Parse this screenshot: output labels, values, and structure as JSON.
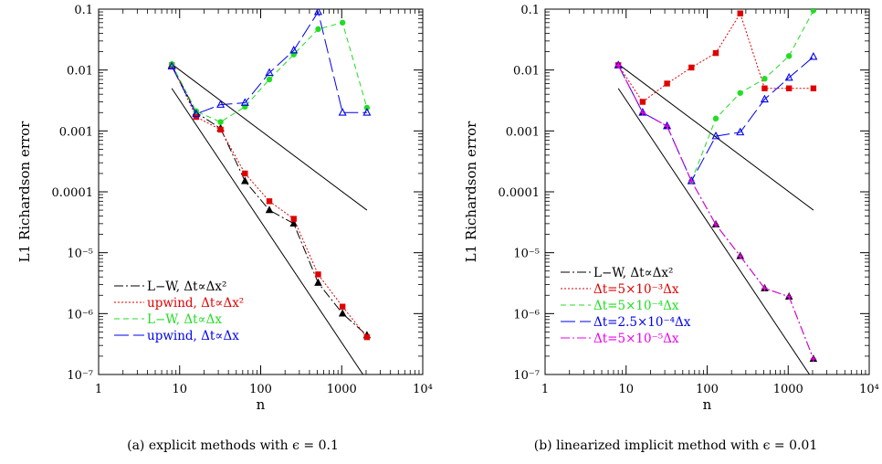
{
  "captions": [
    "(a) explicit methods with ϵ = 0.1",
    "(b) linearized implicit method with ϵ = 0.01"
  ],
  "chart_data": [
    {
      "type": "line",
      "xscale": "log",
      "yscale": "log",
      "xlabel": "n",
      "ylabel": "L1 Richardson error",
      "xlim": [
        1,
        10000
      ],
      "ylim": [
        1e-07,
        0.1
      ],
      "xticks": [
        {
          "v": 1,
          "label": "1"
        },
        {
          "v": 10,
          "label": "10"
        },
        {
          "v": 100,
          "label": "100"
        },
        {
          "v": 1000,
          "label": "1000"
        },
        {
          "v": 10000,
          "label": "10⁴"
        }
      ],
      "yticks": [
        {
          "v": 0.1,
          "label": "0.1"
        },
        {
          "v": 0.01,
          "label": "0.01"
        },
        {
          "v": 0.001,
          "label": "0.001"
        },
        {
          "v": 0.0001,
          "label": "0.0001"
        },
        {
          "v": 1e-05,
          "label": "10⁻⁵"
        },
        {
          "v": 1e-06,
          "label": "10⁻⁶"
        },
        {
          "v": 1e-07,
          "label": "10⁻⁷"
        }
      ],
      "legend_position": "bottom-left",
      "reference_lines": [
        {
          "x": [
            8,
            2048
          ],
          "y": [
            0.0125,
            5e-05
          ]
        },
        {
          "x": [
            8,
            2048
          ],
          "y": [
            0.005,
            8e-08
          ]
        }
      ],
      "series": [
        {
          "name": "L−W,  Δt∝Δx²",
          "color": "#000000",
          "dash": "10 3 2 3",
          "marker": "triangle-filled",
          "x": [
            8,
            16,
            32,
            64,
            128,
            256,
            512,
            1024,
            2048
          ],
          "y": [
            0.012,
            0.002,
            0.0011,
            0.00015,
            5e-05,
            3e-05,
            3.2e-06,
            1e-06,
            4.4e-07
          ]
        },
        {
          "name": "upwind,  Δt∝Δx²",
          "color": "#e00000",
          "dash": "2 2",
          "marker": "square-filled",
          "x": [
            8,
            16,
            32,
            64,
            128,
            256,
            512,
            1024,
            2048
          ],
          "y": [
            0.012,
            0.0017,
            0.00105,
            0.0002,
            7e-05,
            3.6e-05,
            4.4e-06,
            1.3e-06,
            4.1e-07
          ]
        },
        {
          "name": "L−W,  Δt∝Δx",
          "color": "#22dd22",
          "dash": "6 4",
          "marker": "circle-filled",
          "x": [
            8,
            16,
            32,
            64,
            128,
            256,
            512,
            1024,
            2048
          ],
          "y": [
            0.0125,
            0.0021,
            0.0014,
            0.0025,
            0.007,
            0.018,
            0.047,
            0.06,
            0.0024
          ]
        },
        {
          "name": "upwind,  Δt∝Δx",
          "color": "#0000ee",
          "dash": "16 5",
          "marker": "triangle-open",
          "x": [
            8,
            16,
            32,
            64,
            128,
            256,
            512,
            1024,
            2048
          ],
          "y": [
            0.0115,
            0.0019,
            0.0027,
            0.0029,
            0.009,
            0.021,
            0.09,
            0.002,
            0.002
          ]
        }
      ]
    },
    {
      "type": "line",
      "xscale": "log",
      "yscale": "log",
      "xlabel": "n",
      "ylabel": "L1 Richardson error",
      "xlim": [
        1,
        10000
      ],
      "ylim": [
        1e-07,
        0.1
      ],
      "xticks": [
        {
          "v": 1,
          "label": "1"
        },
        {
          "v": 10,
          "label": "10"
        },
        {
          "v": 100,
          "label": "100"
        },
        {
          "v": 1000,
          "label": "1000"
        },
        {
          "v": 10000,
          "label": "10⁴"
        }
      ],
      "yticks": [
        {
          "v": 0.1,
          "label": "0.1"
        },
        {
          "v": 0.01,
          "label": "0.01"
        },
        {
          "v": 0.001,
          "label": "0.001"
        },
        {
          "v": 0.0001,
          "label": "0.0001"
        },
        {
          "v": 1e-05,
          "label": "10⁻⁵"
        },
        {
          "v": 1e-06,
          "label": "10⁻⁶"
        },
        {
          "v": 1e-07,
          "label": "10⁻⁷"
        }
      ],
      "legend_position": "bottom-left",
      "reference_lines": [
        {
          "x": [
            8,
            2048
          ],
          "y": [
            0.0125,
            5e-05
          ]
        },
        {
          "x": [
            8,
            2048
          ],
          "y": [
            0.005,
            8e-08
          ]
        }
      ],
      "series": [
        {
          "name": "L−W,  Δt∝Δx²",
          "color": "#000000",
          "dash": "10 3 2 3",
          "marker": "triangle-filled",
          "x": [
            8,
            16,
            32,
            64,
            128,
            256,
            512,
            1024,
            2048
          ],
          "y": [
            0.012,
            0.002,
            0.0012,
            0.00015,
            2.9e-05,
            8.8e-06,
            2.6e-06,
            1.9e-06,
            1.8e-07
          ]
        },
        {
          "name": "Δt=5×10⁻³Δx",
          "color": "#e00000",
          "dash": "2 2",
          "marker": "square-filled",
          "x": [
            8,
            16,
            32,
            64,
            128,
            256,
            512,
            1024,
            2048
          ],
          "y": [
            0.012,
            0.003,
            0.006,
            0.011,
            0.019,
            0.085,
            0.005,
            0.005,
            0.005
          ]
        },
        {
          "name": "Δt=5×10⁻⁴Δx",
          "color": "#22dd22",
          "dash": "6 4",
          "marker": "circle-filled",
          "x": [
            64,
            128,
            256,
            512,
            1024,
            2048
          ],
          "y": [
            0.00015,
            0.0016,
            0.0042,
            0.0072,
            0.017,
            0.095
          ]
        },
        {
          "name": "Δt=2.5×10⁻⁴Δx",
          "color": "#0000ee",
          "dash": "16 5",
          "marker": "triangle-open",
          "x": [
            8,
            16,
            32,
            64,
            128,
            256,
            512,
            1024,
            2048
          ],
          "y": [
            0.012,
            0.002,
            0.0012,
            0.00015,
            0.00082,
            0.00095,
            0.0033,
            0.0075,
            0.0165
          ]
        },
        {
          "name": "Δt=5×10⁻⁵Δx",
          "color": "#ee00ee",
          "dash": "10 3 2 3",
          "marker": "cross",
          "x": [
            8,
            16,
            32,
            64,
            128,
            256,
            512,
            1024,
            2048
          ],
          "y": [
            0.012,
            0.002,
            0.0012,
            0.00015,
            2.9e-05,
            8.8e-06,
            2.6e-06,
            1.9e-06,
            1.8e-07
          ]
        }
      ]
    }
  ]
}
